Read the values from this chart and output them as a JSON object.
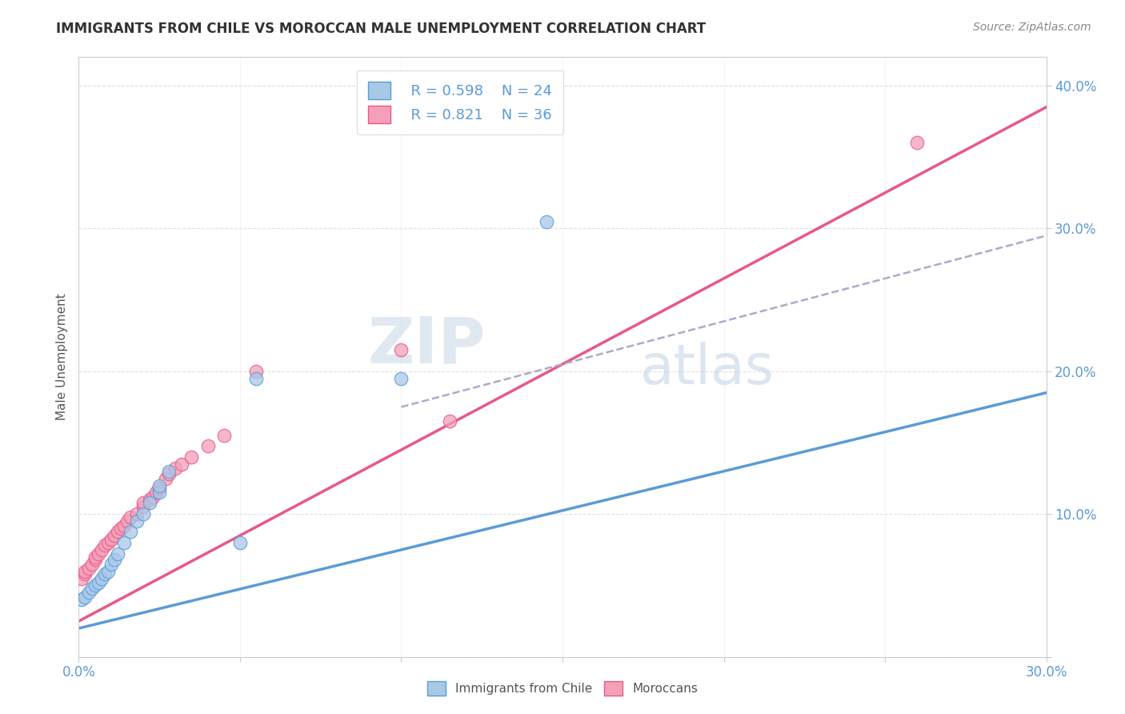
{
  "title": "IMMIGRANTS FROM CHILE VS MOROCCAN MALE UNEMPLOYMENT CORRELATION CHART",
  "source": "Source: ZipAtlas.com",
  "ylabel": "Male Unemployment",
  "xlabel": "",
  "watermark": "ZIPatlas",
  "xlim": [
    0.0,
    0.3
  ],
  "ylim": [
    0.0,
    0.42
  ],
  "xtick_labels": [
    "0.0%",
    "",
    "",
    "",
    "",
    "",
    "30.0%"
  ],
  "xtick_values": [
    0.0,
    0.05,
    0.1,
    0.15,
    0.2,
    0.25,
    0.3
  ],
  "ytick_labels": [
    "",
    "10.0%",
    "20.0%",
    "30.0%",
    "40.0%"
  ],
  "ytick_values": [
    0.0,
    0.1,
    0.2,
    0.3,
    0.4
  ],
  "legend_r1": "R = 0.598",
  "legend_n1": "N = 24",
  "legend_r2": "R = 0.821",
  "legend_n2": "N = 36",
  "color_blue": "#a8c8e8",
  "color_pink": "#f4a0b8",
  "color_blue_solid": "#5b9bd5",
  "color_pink_line": "#e85888",
  "color_dashed": "#aaaacc",
  "blue_scatter_x": [
    0.001,
    0.002,
    0.003,
    0.004,
    0.005,
    0.006,
    0.007,
    0.008,
    0.009,
    0.01,
    0.011,
    0.012,
    0.014,
    0.016,
    0.018,
    0.02,
    0.022,
    0.025,
    0.025,
    0.028,
    0.05,
    0.055,
    0.1,
    0.145
  ],
  "blue_scatter_y": [
    0.04,
    0.042,
    0.045,
    0.048,
    0.05,
    0.052,
    0.055,
    0.058,
    0.06,
    0.065,
    0.068,
    0.072,
    0.08,
    0.088,
    0.095,
    0.1,
    0.108,
    0.115,
    0.12,
    0.13,
    0.08,
    0.195,
    0.195,
    0.305
  ],
  "pink_scatter_x": [
    0.001,
    0.002,
    0.002,
    0.003,
    0.004,
    0.005,
    0.005,
    0.006,
    0.007,
    0.008,
    0.009,
    0.01,
    0.011,
    0.012,
    0.013,
    0.014,
    0.015,
    0.016,
    0.018,
    0.02,
    0.02,
    0.022,
    0.023,
    0.024,
    0.025,
    0.027,
    0.028,
    0.03,
    0.032,
    0.035,
    0.04,
    0.045,
    0.055,
    0.1,
    0.115,
    0.26
  ],
  "pink_scatter_y": [
    0.055,
    0.058,
    0.06,
    0.062,
    0.065,
    0.068,
    0.07,
    0.072,
    0.075,
    0.078,
    0.08,
    0.082,
    0.085,
    0.088,
    0.09,
    0.092,
    0.095,
    0.098,
    0.1,
    0.105,
    0.108,
    0.11,
    0.112,
    0.115,
    0.118,
    0.125,
    0.128,
    0.132,
    0.135,
    0.14,
    0.148,
    0.155,
    0.2,
    0.215,
    0.165,
    0.36
  ],
  "blue_line_x0": 0.0,
  "blue_line_y0": 0.02,
  "blue_line_x1": 0.3,
  "blue_line_y1": 0.185,
  "pink_line_x0": 0.0,
  "pink_line_y0": 0.025,
  "pink_line_x1": 0.3,
  "pink_line_y1": 0.385,
  "dashed_line_x0": 0.1,
  "dashed_line_y0": 0.175,
  "dashed_line_x1": 0.3,
  "dashed_line_y1": 0.295,
  "background_color": "#ffffff",
  "grid_color": "#cccccc"
}
